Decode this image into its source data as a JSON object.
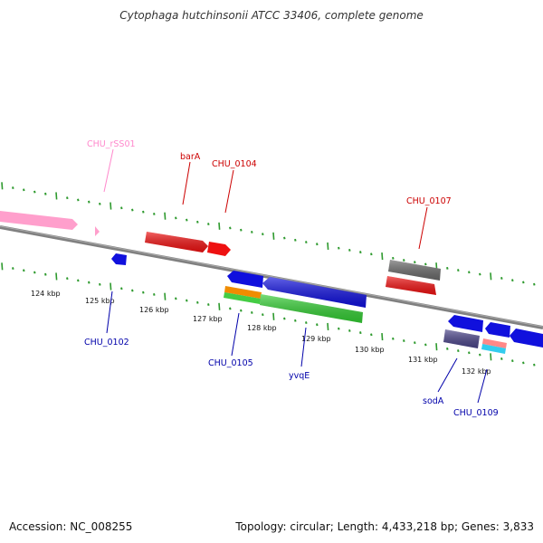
{
  "title": "Cytophaga hutchinsonii ATCC 33406, complete genome",
  "footer": {
    "accession": "Accession: NC_008255",
    "topology": "Topology: circular; Length: 4,433,218 bp; Genes: 3,833"
  },
  "colors": {
    "backbone": "#808080",
    "tick": "#2e9a2e",
    "forward_label": "#cc0000",
    "reverse_label": "#0000aa",
    "rrna_label": "#ff88cc"
  },
  "scale_labels": [
    "124 kbp",
    "125 kbp",
    "126 kbp",
    "127 kbp",
    "128 kbp",
    "129 kbp",
    "130 kbp",
    "131 kbp",
    "132 kbp"
  ],
  "gene_labels": {
    "chu_rss01": "CHU_rSS01",
    "bara": "barA",
    "chu_0104": "CHU_0104",
    "chu_0107": "CHU_0107",
    "chu_0102": "CHU_0102",
    "chu_0105": "CHU_0105",
    "yvqe": "yvqE",
    "soda": "sodA",
    "chu_0109": "CHU_0109"
  }
}
